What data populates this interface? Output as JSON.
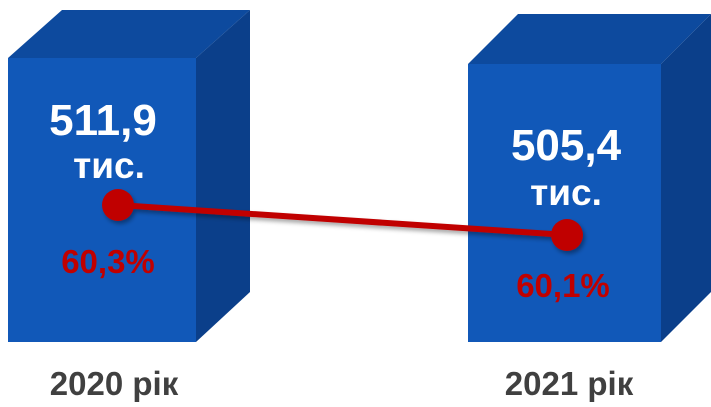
{
  "chart_data": {
    "type": "bar",
    "categories": [
      "2020 рік",
      "2021 рік"
    ],
    "series": [
      {
        "values": [
          511.9,
          505.4
        ],
        "labels": [
          "511,9",
          "505,4"
        ],
        "unit_label": "тис."
      },
      {
        "values": [
          60.3,
          60.1
        ],
        "labels": [
          "60,3%",
          "60,1%"
        ]
      }
    ]
  },
  "colors": {
    "bar_front": "#1158b8",
    "bar_side": "#0b3f8a",
    "bar_top": "#0d4a9e",
    "line": "#c00000",
    "percent_text": "#c00000",
    "category_text": "#404040"
  }
}
